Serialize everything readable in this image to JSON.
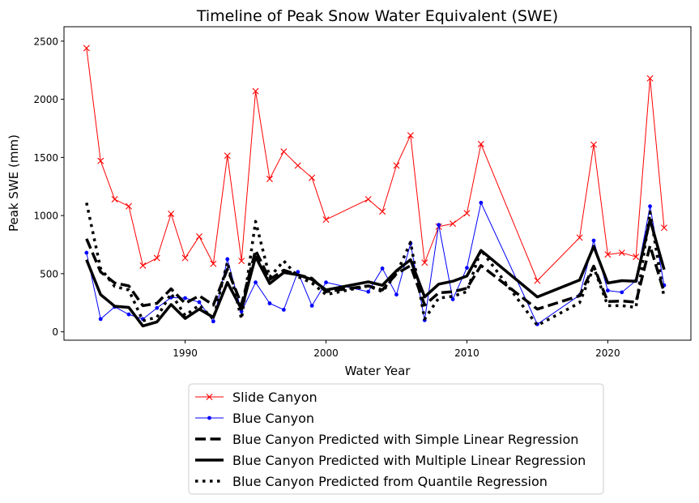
{
  "chart_data": {
    "type": "line",
    "title": "Timeline of Peak Snow Water Equivalent (SWE)",
    "xlabel": "Water Year",
    "ylabel": "Peak SWE (mm)",
    "xlim": [
      1981.4,
      2025.9
    ],
    "ylim": [
      -72,
      2624
    ],
    "xticks": [
      1990,
      2000,
      2010,
      2020
    ],
    "yticks": [
      0,
      500,
      1000,
      1500,
      2000,
      2500
    ],
    "grid": false,
    "legend_position": "bottom-center",
    "series": [
      {
        "name": "Slide Canyon",
        "color": "#ff0000",
        "style": "solid-x",
        "points": [
          [
            1983,
            2440
          ],
          [
            1984,
            1470
          ],
          [
            1985,
            1140
          ],
          [
            1986,
            1080
          ],
          [
            1987,
            570
          ],
          [
            1988,
            635
          ],
          [
            1989,
            1015
          ],
          [
            1990,
            635
          ],
          [
            1991,
            820
          ],
          [
            1992,
            585
          ],
          [
            1993,
            1515
          ],
          [
            1994,
            610
          ],
          [
            1995,
            2070
          ],
          [
            1996,
            1315
          ],
          [
            1997,
            1550
          ],
          [
            1998,
            1430
          ],
          [
            1999,
            1325
          ],
          [
            2000,
            965
          ],
          [
            2003,
            1140
          ],
          [
            2004,
            1035
          ],
          [
            2005,
            1430
          ],
          [
            2006,
            1690
          ],
          [
            2007,
            595
          ],
          [
            2008,
            905
          ],
          [
            2009,
            930
          ],
          [
            2010,
            1020
          ],
          [
            2011,
            1615
          ],
          [
            2015,
            440
          ],
          [
            2018,
            810
          ],
          [
            2019,
            1610
          ],
          [
            2020,
            665
          ],
          [
            2021,
            680
          ],
          [
            2022,
            645
          ],
          [
            2023,
            2180
          ],
          [
            2024,
            895
          ]
        ]
      },
      {
        "name": "Blue Canyon",
        "color": "#0000ff",
        "style": "solid-dot",
        "points": [
          [
            1983,
            680
          ],
          [
            1984,
            110
          ],
          [
            1985,
            215
          ],
          [
            1986,
            150
          ],
          [
            1987,
            110
          ],
          [
            1988,
            205
          ],
          [
            1989,
            295
          ],
          [
            1990,
            290
          ],
          [
            1991,
            255
          ],
          [
            1992,
            90
          ],
          [
            1993,
            625
          ],
          [
            1994,
            175
          ],
          [
            1995,
            425
          ],
          [
            1996,
            245
          ],
          [
            1997,
            190
          ],
          [
            1998,
            515
          ],
          [
            1999,
            225
          ],
          [
            2000,
            425
          ],
          [
            2003,
            345
          ],
          [
            2004,
            545
          ],
          [
            2005,
            320
          ],
          [
            2006,
            760
          ],
          [
            2007,
            100
          ],
          [
            2008,
            920
          ],
          [
            2009,
            280
          ],
          [
            2010,
            550
          ],
          [
            2011,
            1110
          ],
          [
            2015,
            65
          ],
          [
            2018,
            315
          ],
          [
            2019,
            785
          ],
          [
            2020,
            355
          ],
          [
            2021,
            340
          ],
          [
            2022,
            440
          ],
          [
            2023,
            1080
          ],
          [
            2024,
            400
          ]
        ]
      },
      {
        "name": "Blue Canyon Predicted with Simple Linear Regression",
        "color": "#000000",
        "style": "dashed",
        "points": [
          [
            1983,
            800
          ],
          [
            1984,
            515
          ],
          [
            1985,
            420
          ],
          [
            1986,
            395
          ],
          [
            1987,
            225
          ],
          [
            1988,
            245
          ],
          [
            1989,
            370
          ],
          [
            1990,
            245
          ],
          [
            1991,
            310
          ],
          [
            1992,
            230
          ],
          [
            1993,
            540
          ],
          [
            1994,
            235
          ],
          [
            1995,
            700
          ],
          [
            1996,
            450
          ],
          [
            1997,
            530
          ],
          [
            1998,
            490
          ],
          [
            1999,
            460
          ],
          [
            2000,
            345
          ],
          [
            2003,
            395
          ],
          [
            2004,
            360
          ],
          [
            2005,
            500
          ],
          [
            2006,
            570
          ],
          [
            2007,
            230
          ],
          [
            2008,
            335
          ],
          [
            2009,
            345
          ],
          [
            2010,
            375
          ],
          [
            2011,
            570
          ],
          [
            2015,
            195
          ],
          [
            2018,
            310
          ],
          [
            2019,
            565
          ],
          [
            2020,
            260
          ],
          [
            2021,
            265
          ],
          [
            2022,
            255
          ],
          [
            2023,
            740
          ],
          [
            2024,
            340
          ]
        ]
      },
      {
        "name": "Blue Canyon Predicted with Multiple Linear Regression",
        "color": "#000000",
        "style": "solid-thick",
        "points": [
          [
            1983,
            620
          ],
          [
            1984,
            320
          ],
          [
            1985,
            220
          ],
          [
            1986,
            210
          ],
          [
            1987,
            50
          ],
          [
            1988,
            85
          ],
          [
            1989,
            235
          ],
          [
            1990,
            115
          ],
          [
            1991,
            195
          ],
          [
            1992,
            125
          ],
          [
            1993,
            425
          ],
          [
            1994,
            195
          ],
          [
            1995,
            645
          ],
          [
            1996,
            415
          ],
          [
            1997,
            510
          ],
          [
            1998,
            490
          ],
          [
            1999,
            450
          ],
          [
            2000,
            360
          ],
          [
            2003,
            430
          ],
          [
            2004,
            400
          ],
          [
            2005,
            525
          ],
          [
            2006,
            620
          ],
          [
            2007,
            300
          ],
          [
            2008,
            410
          ],
          [
            2009,
            435
          ],
          [
            2010,
            480
          ],
          [
            2011,
            700
          ],
          [
            2015,
            300
          ],
          [
            2018,
            445
          ],
          [
            2019,
            735
          ],
          [
            2020,
            420
          ],
          [
            2021,
            440
          ],
          [
            2022,
            435
          ],
          [
            2023,
            965
          ],
          [
            2024,
            535
          ]
        ]
      },
      {
        "name": "Blue Canyon Predicted from Quantile Regression",
        "color": "#000000",
        "style": "dotted",
        "points": [
          [
            1983,
            1110
          ],
          [
            1984,
            545
          ],
          [
            1985,
            390
          ],
          [
            1986,
            360
          ],
          [
            1987,
            95
          ],
          [
            1988,
            125
          ],
          [
            1989,
            330
          ],
          [
            1990,
            140
          ],
          [
            1991,
            230
          ],
          [
            1992,
            110
          ],
          [
            1993,
            600
          ],
          [
            1994,
            110
          ],
          [
            1995,
            950
          ],
          [
            1996,
            470
          ],
          [
            1997,
            610
          ],
          [
            1998,
            475
          ],
          [
            1999,
            420
          ],
          [
            2000,
            320
          ],
          [
            2003,
            395
          ],
          [
            2004,
            345
          ],
          [
            2005,
            500
          ],
          [
            2006,
            770
          ],
          [
            2007,
            110
          ],
          [
            2008,
            290
          ],
          [
            2009,
            305
          ],
          [
            2010,
            345
          ],
          [
            2011,
            705
          ],
          [
            2015,
            55
          ],
          [
            2018,
            250
          ],
          [
            2019,
            555
          ],
          [
            2020,
            225
          ],
          [
            2021,
            225
          ],
          [
            2022,
            210
          ],
          [
            2023,
            1030
          ],
          [
            2024,
            290
          ]
        ]
      }
    ]
  }
}
